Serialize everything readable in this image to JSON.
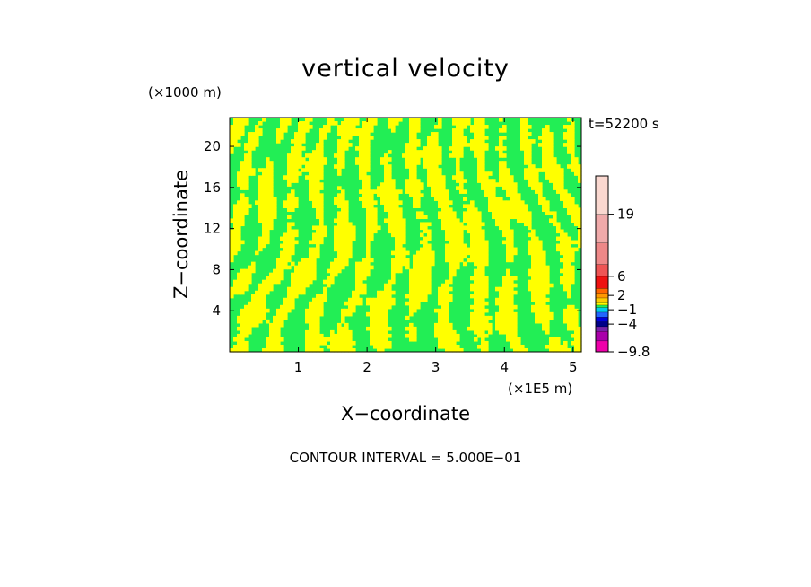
{
  "chart_data": {
    "type": "heatmap",
    "title": "vertical velocity",
    "xlabel": "X−coordinate",
    "ylabel": "Z−coordinate",
    "x_unit": "(×1E5 m)",
    "y_unit": "(×1000 m)",
    "time_label": "t=52200 s",
    "x_ticks": [
      "1",
      "2",
      "3",
      "4",
      "5"
    ],
    "x_tick_values": [
      1,
      2,
      3,
      4,
      5
    ],
    "y_ticks": [
      "4",
      "8",
      "12",
      "16",
      "20"
    ],
    "y_tick_values": [
      4,
      8,
      12,
      16,
      20
    ],
    "xlim": [
      0,
      5.12
    ],
    "ylim": [
      0,
      22.8
    ],
    "field_description_colors": {
      "positive": "#ffff00",
      "negative": "#22ee55"
    },
    "contour_interval": "CONTOUR INTERVAL = 5.000E−01",
    "colorbar": {
      "labels": [
        "19",
        "6",
        "2",
        "−1",
        "−4",
        "−9.8"
      ],
      "label_values": [
        19,
        6,
        2,
        -1,
        -4,
        -9.8
      ],
      "range": [
        -9.8,
        27
      ],
      "levels": [
        {
          "from": -9.8,
          "to": -7.5,
          "color": "#ee00aa"
        },
        {
          "from": -7.5,
          "to": -5.5,
          "color": "#aa00aa"
        },
        {
          "from": -5.5,
          "to": -4.5,
          "color": "#7722aa"
        },
        {
          "from": -4.5,
          "to": -3.5,
          "color": "#000088"
        },
        {
          "from": -3.5,
          "to": -2.5,
          "color": "#0000dd"
        },
        {
          "from": -2.5,
          "to": -1.5,
          "color": "#2266ff"
        },
        {
          "from": -1.5,
          "to": -0.5,
          "color": "#00ccee"
        },
        {
          "from": -0.5,
          "to": 0.0,
          "color": "#22ee55"
        },
        {
          "from": 0.0,
          "to": 0.5,
          "color": "#ffff00"
        },
        {
          "from": 0.5,
          "to": 1.5,
          "color": "#ffcc00"
        },
        {
          "from": 1.5,
          "to": 2.5,
          "color": "#ff9900"
        },
        {
          "from": 2.5,
          "to": 3.5,
          "color": "#ff6600"
        },
        {
          "from": 3.5,
          "to": 6.0,
          "color": "#ee1111"
        },
        {
          "from": 6.0,
          "to": 8.5,
          "color": "#ee5555"
        },
        {
          "from": 8.5,
          "to": 13.0,
          "color": "#ee8888"
        },
        {
          "from": 13.0,
          "to": 19.0,
          "color": "#f0aaaa"
        },
        {
          "from": 19.0,
          "to": 27.0,
          "color": "#fad8d0"
        }
      ]
    }
  }
}
